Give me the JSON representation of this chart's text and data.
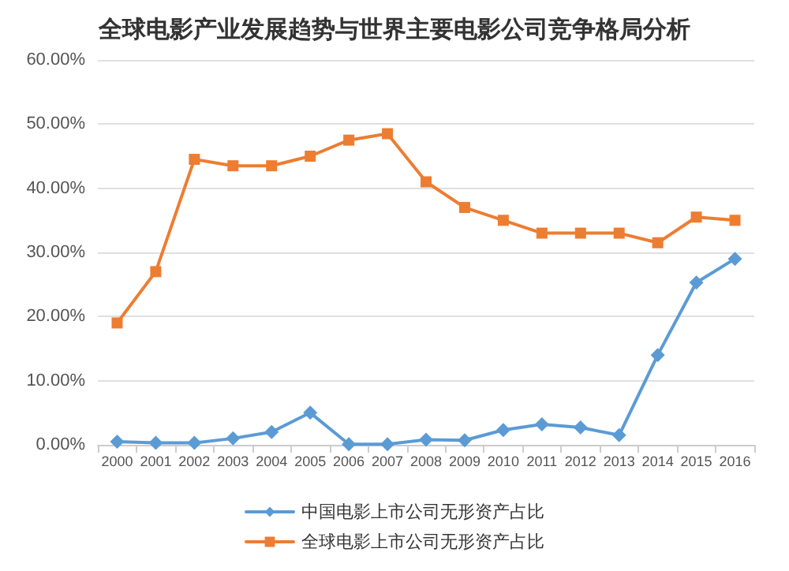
{
  "chart_data": {
    "type": "line",
    "title": "全球电影产业发展趋势与世界主要电影公司竞争格局分析",
    "categories": [
      "2000",
      "2001",
      "2002",
      "2003",
      "2004",
      "2005",
      "2006",
      "2007",
      "2008",
      "2009",
      "2010",
      "2011",
      "2012",
      "2013",
      "2014",
      "2015",
      "2016"
    ],
    "series": [
      {
        "name": "中国电影上市公司无形资产占比",
        "color": "#5b9bd5",
        "marker": "diamond",
        "values": [
          0.5,
          0.3,
          0.3,
          1,
          2,
          5,
          0.1,
          0.1,
          0.8,
          0.7,
          2.3,
          3.2,
          2.7,
          1.5,
          14,
          25.3,
          29
        ]
      },
      {
        "name": "全球电影上市公司无形资产占比",
        "color": "#ed7d31",
        "marker": "square",
        "values": [
          19,
          27,
          44.5,
          43.5,
          43.5,
          45,
          47.5,
          48.5,
          41,
          37,
          35,
          33,
          33,
          33,
          31.5,
          35.5,
          35
        ]
      }
    ],
    "ylim": [
      0,
      60
    ],
    "yticks": [
      {
        "value": 0,
        "label": "0.00%"
      },
      {
        "value": 10,
        "label": "10.00%"
      },
      {
        "value": 20,
        "label": "20.00%"
      },
      {
        "value": 30,
        "label": "30.00%"
      },
      {
        "value": 40,
        "label": "40.00%"
      },
      {
        "value": 50,
        "label": "50.00%"
      },
      {
        "value": 60,
        "label": "60.00%"
      }
    ],
    "grid": "y",
    "legend": "bottom",
    "line_style": "solid"
  }
}
